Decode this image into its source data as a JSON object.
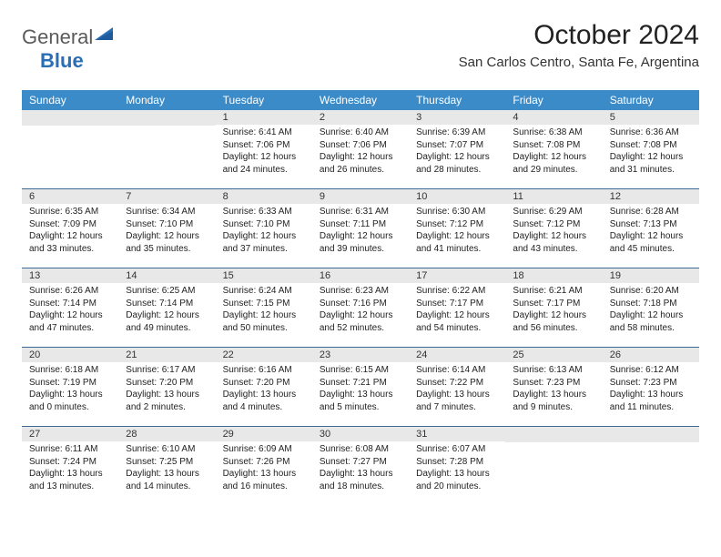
{
  "logo": {
    "part1": "General",
    "part2": "Blue"
  },
  "title": "October 2024",
  "location": "San Carlos Centro, Santa Fe, Argentina",
  "header_bg": "#3b8bc8",
  "header_text_color": "#ffffff",
  "daynum_bg": "#e8e8e8",
  "week_border_color": "#3b6a96",
  "body_text_color": "#222222",
  "fontsize_dayheader": 12,
  "fontsize_daynum": 11,
  "fontsize_cell": 10,
  "day_headers": [
    "Sunday",
    "Monday",
    "Tuesday",
    "Wednesday",
    "Thursday",
    "Friday",
    "Saturday"
  ],
  "weeks": [
    [
      {
        "day": "",
        "sunrise": "",
        "sunset": "",
        "daylight1": "",
        "daylight2": ""
      },
      {
        "day": "",
        "sunrise": "",
        "sunset": "",
        "daylight1": "",
        "daylight2": ""
      },
      {
        "day": "1",
        "sunrise": "Sunrise: 6:41 AM",
        "sunset": "Sunset: 7:06 PM",
        "daylight1": "Daylight: 12 hours",
        "daylight2": "and 24 minutes."
      },
      {
        "day": "2",
        "sunrise": "Sunrise: 6:40 AM",
        "sunset": "Sunset: 7:06 PM",
        "daylight1": "Daylight: 12 hours",
        "daylight2": "and 26 minutes."
      },
      {
        "day": "3",
        "sunrise": "Sunrise: 6:39 AM",
        "sunset": "Sunset: 7:07 PM",
        "daylight1": "Daylight: 12 hours",
        "daylight2": "and 28 minutes."
      },
      {
        "day": "4",
        "sunrise": "Sunrise: 6:38 AM",
        "sunset": "Sunset: 7:08 PM",
        "daylight1": "Daylight: 12 hours",
        "daylight2": "and 29 minutes."
      },
      {
        "day": "5",
        "sunrise": "Sunrise: 6:36 AM",
        "sunset": "Sunset: 7:08 PM",
        "daylight1": "Daylight: 12 hours",
        "daylight2": "and 31 minutes."
      }
    ],
    [
      {
        "day": "6",
        "sunrise": "Sunrise: 6:35 AM",
        "sunset": "Sunset: 7:09 PM",
        "daylight1": "Daylight: 12 hours",
        "daylight2": "and 33 minutes."
      },
      {
        "day": "7",
        "sunrise": "Sunrise: 6:34 AM",
        "sunset": "Sunset: 7:10 PM",
        "daylight1": "Daylight: 12 hours",
        "daylight2": "and 35 minutes."
      },
      {
        "day": "8",
        "sunrise": "Sunrise: 6:33 AM",
        "sunset": "Sunset: 7:10 PM",
        "daylight1": "Daylight: 12 hours",
        "daylight2": "and 37 minutes."
      },
      {
        "day": "9",
        "sunrise": "Sunrise: 6:31 AM",
        "sunset": "Sunset: 7:11 PM",
        "daylight1": "Daylight: 12 hours",
        "daylight2": "and 39 minutes."
      },
      {
        "day": "10",
        "sunrise": "Sunrise: 6:30 AM",
        "sunset": "Sunset: 7:12 PM",
        "daylight1": "Daylight: 12 hours",
        "daylight2": "and 41 minutes."
      },
      {
        "day": "11",
        "sunrise": "Sunrise: 6:29 AM",
        "sunset": "Sunset: 7:12 PM",
        "daylight1": "Daylight: 12 hours",
        "daylight2": "and 43 minutes."
      },
      {
        "day": "12",
        "sunrise": "Sunrise: 6:28 AM",
        "sunset": "Sunset: 7:13 PM",
        "daylight1": "Daylight: 12 hours",
        "daylight2": "and 45 minutes."
      }
    ],
    [
      {
        "day": "13",
        "sunrise": "Sunrise: 6:26 AM",
        "sunset": "Sunset: 7:14 PM",
        "daylight1": "Daylight: 12 hours",
        "daylight2": "and 47 minutes."
      },
      {
        "day": "14",
        "sunrise": "Sunrise: 6:25 AM",
        "sunset": "Sunset: 7:14 PM",
        "daylight1": "Daylight: 12 hours",
        "daylight2": "and 49 minutes."
      },
      {
        "day": "15",
        "sunrise": "Sunrise: 6:24 AM",
        "sunset": "Sunset: 7:15 PM",
        "daylight1": "Daylight: 12 hours",
        "daylight2": "and 50 minutes."
      },
      {
        "day": "16",
        "sunrise": "Sunrise: 6:23 AM",
        "sunset": "Sunset: 7:16 PM",
        "daylight1": "Daylight: 12 hours",
        "daylight2": "and 52 minutes."
      },
      {
        "day": "17",
        "sunrise": "Sunrise: 6:22 AM",
        "sunset": "Sunset: 7:17 PM",
        "daylight1": "Daylight: 12 hours",
        "daylight2": "and 54 minutes."
      },
      {
        "day": "18",
        "sunrise": "Sunrise: 6:21 AM",
        "sunset": "Sunset: 7:17 PM",
        "daylight1": "Daylight: 12 hours",
        "daylight2": "and 56 minutes."
      },
      {
        "day": "19",
        "sunrise": "Sunrise: 6:20 AM",
        "sunset": "Sunset: 7:18 PM",
        "daylight1": "Daylight: 12 hours",
        "daylight2": "and 58 minutes."
      }
    ],
    [
      {
        "day": "20",
        "sunrise": "Sunrise: 6:18 AM",
        "sunset": "Sunset: 7:19 PM",
        "daylight1": "Daylight: 13 hours",
        "daylight2": "and 0 minutes."
      },
      {
        "day": "21",
        "sunrise": "Sunrise: 6:17 AM",
        "sunset": "Sunset: 7:20 PM",
        "daylight1": "Daylight: 13 hours",
        "daylight2": "and 2 minutes."
      },
      {
        "day": "22",
        "sunrise": "Sunrise: 6:16 AM",
        "sunset": "Sunset: 7:20 PM",
        "daylight1": "Daylight: 13 hours",
        "daylight2": "and 4 minutes."
      },
      {
        "day": "23",
        "sunrise": "Sunrise: 6:15 AM",
        "sunset": "Sunset: 7:21 PM",
        "daylight1": "Daylight: 13 hours",
        "daylight2": "and 5 minutes."
      },
      {
        "day": "24",
        "sunrise": "Sunrise: 6:14 AM",
        "sunset": "Sunset: 7:22 PM",
        "daylight1": "Daylight: 13 hours",
        "daylight2": "and 7 minutes."
      },
      {
        "day": "25",
        "sunrise": "Sunrise: 6:13 AM",
        "sunset": "Sunset: 7:23 PM",
        "daylight1": "Daylight: 13 hours",
        "daylight2": "and 9 minutes."
      },
      {
        "day": "26",
        "sunrise": "Sunrise: 6:12 AM",
        "sunset": "Sunset: 7:23 PM",
        "daylight1": "Daylight: 13 hours",
        "daylight2": "and 11 minutes."
      }
    ],
    [
      {
        "day": "27",
        "sunrise": "Sunrise: 6:11 AM",
        "sunset": "Sunset: 7:24 PM",
        "daylight1": "Daylight: 13 hours",
        "daylight2": "and 13 minutes."
      },
      {
        "day": "28",
        "sunrise": "Sunrise: 6:10 AM",
        "sunset": "Sunset: 7:25 PM",
        "daylight1": "Daylight: 13 hours",
        "daylight2": "and 14 minutes."
      },
      {
        "day": "29",
        "sunrise": "Sunrise: 6:09 AM",
        "sunset": "Sunset: 7:26 PM",
        "daylight1": "Daylight: 13 hours",
        "daylight2": "and 16 minutes."
      },
      {
        "day": "30",
        "sunrise": "Sunrise: 6:08 AM",
        "sunset": "Sunset: 7:27 PM",
        "daylight1": "Daylight: 13 hours",
        "daylight2": "and 18 minutes."
      },
      {
        "day": "31",
        "sunrise": "Sunrise: 6:07 AM",
        "sunset": "Sunset: 7:28 PM",
        "daylight1": "Daylight: 13 hours",
        "daylight2": "and 20 minutes."
      },
      {
        "day": "",
        "sunrise": "",
        "sunset": "",
        "daylight1": "",
        "daylight2": ""
      },
      {
        "day": "",
        "sunrise": "",
        "sunset": "",
        "daylight1": "",
        "daylight2": ""
      }
    ]
  ]
}
